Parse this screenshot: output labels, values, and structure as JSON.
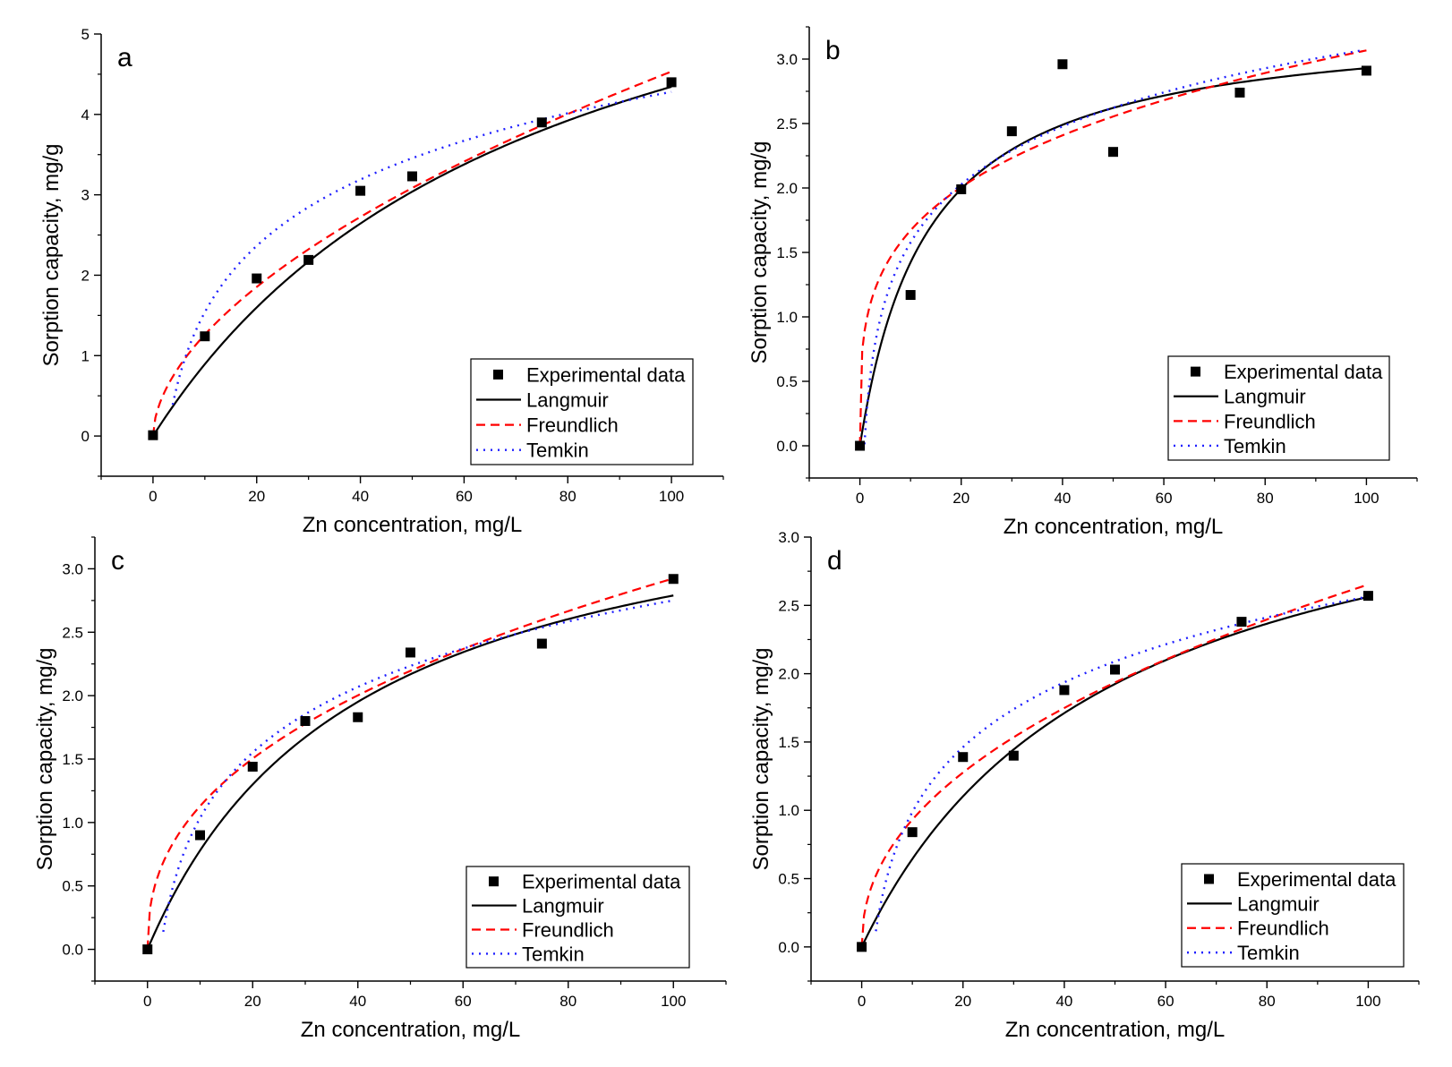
{
  "colors": {
    "langmuir": "#000000",
    "freundlich": "#ff0000",
    "temkin": "#1f1fff",
    "points": "#000000"
  },
  "chart_data": [
    {
      "type": "scatter",
      "panel_label": "a",
      "xlabel": "Zn concentration, mg/L",
      "ylabel": "Sorption capacity, mg/g",
      "xlim": [
        -10,
        110
      ],
      "ylim": [
        -0.5,
        5
      ],
      "xticks": [
        "0",
        "20",
        "40",
        "60",
        "80",
        "100"
      ],
      "yticks": [
        "0",
        "1",
        "2",
        "3",
        "4",
        "5"
      ],
      "legend": [
        "Experimental data",
        "Langmuir",
        "Freundlich",
        "Temkin"
      ],
      "legend_position": "bottom-right",
      "series": [
        {
          "name": "Experimental data",
          "x": [
            0,
            10,
            20,
            30,
            40,
            50,
            75,
            100
          ],
          "y": [
            0.01,
            1.24,
            1.96,
            2.19,
            3.05,
            3.23,
            3.9,
            4.4
          ]
        },
        {
          "name": "Langmuir",
          "model": "langmuir",
          "qmax": 7.61,
          "K": 0.0133,
          "xrange": [
            0,
            100
          ]
        },
        {
          "name": "Freundlich",
          "model": "freundlich",
          "Kf": 0.351,
          "n": 1.8,
          "xrange": [
            0,
            100
          ]
        },
        {
          "name": "Temkin",
          "model": "temkin",
          "A": -1.2,
          "B": 1.19,
          "xrange": [
            3.8,
            100
          ]
        }
      ]
    },
    {
      "type": "scatter",
      "panel_label": "b",
      "xlabel": "Zn concentration, mg/L",
      "ylabel": "Sorption capacity, mg/g",
      "xlim": [
        -10,
        110
      ],
      "ylim": [
        -0.25,
        3.25
      ],
      "xticks": [
        "0",
        "20",
        "40",
        "60",
        "80",
        "100"
      ],
      "yticks": [
        "0.0",
        "0.5",
        "1.0",
        "1.5",
        "2.0",
        "2.5",
        "3.0"
      ],
      "legend": [
        "Experimental data",
        "Langmuir",
        "Freundlich",
        "Temkin"
      ],
      "legend_position": "bottom-right",
      "series": [
        {
          "name": "Experimental data",
          "x": [
            0,
            10,
            20,
            30,
            40,
            50,
            75,
            100
          ],
          "y": [
            0.0,
            1.17,
            1.99,
            2.44,
            2.96,
            2.28,
            2.74,
            2.91
          ]
        },
        {
          "name": "Langmuir",
          "model": "langmuir",
          "qmax": 3.32,
          "K": 0.075,
          "xrange": [
            0,
            100
          ]
        },
        {
          "name": "Freundlich",
          "model": "freundlich",
          "Kf": 0.91,
          "n": 3.79,
          "xrange": [
            0,
            100
          ]
        },
        {
          "name": "Temkin",
          "model": "temkin",
          "A": 0.08,
          "B": 0.65,
          "xrange": [
            0.9,
            99
          ]
        }
      ]
    },
    {
      "type": "scatter",
      "panel_label": "c",
      "xlabel": "Zn concentration, mg/L",
      "ylabel": "Sorption capacity, mg/g",
      "xlim": [
        -10,
        110
      ],
      "ylim": [
        -0.25,
        3.25
      ],
      "xticks": [
        "0",
        "20",
        "40",
        "60",
        "80",
        "100"
      ],
      "yticks": [
        "0.0",
        "0.5",
        "1.0",
        "1.5",
        "2.0",
        "2.5",
        "3.0"
      ],
      "legend": [
        "Experimental data",
        "Langmuir",
        "Freundlich",
        "Temkin"
      ],
      "legend_position": "bottom-right",
      "series": [
        {
          "name": "Experimental data",
          "x": [
            0,
            10,
            20,
            30,
            40,
            50,
            75,
            100
          ],
          "y": [
            0.0,
            0.9,
            1.44,
            1.8,
            1.83,
            2.34,
            2.41,
            2.92
          ]
        },
        {
          "name": "Langmuir",
          "model": "langmuir",
          "qmax": 3.91,
          "K": 0.0249,
          "xrange": [
            0,
            100
          ]
        },
        {
          "name": "Freundlich",
          "model": "freundlich",
          "Kf": 0.436,
          "n": 2.42,
          "xrange": [
            0,
            100
          ]
        },
        {
          "name": "Temkin",
          "model": "temkin",
          "A": -0.68,
          "B": 0.745,
          "xrange": [
            3,
            100
          ]
        }
      ]
    },
    {
      "type": "scatter",
      "panel_label": "d",
      "xlabel": "Zn concentration, mg/L",
      "ylabel": "Sorption capacity, mg/g",
      "xlim": [
        -10,
        110
      ],
      "ylim": [
        -0.25,
        3.0
      ],
      "xticks": [
        "0",
        "20",
        "40",
        "60",
        "80",
        "100"
      ],
      "yticks": [
        "0.0",
        "0.5",
        "1.0",
        "1.5",
        "2.0",
        "2.5",
        "3.0"
      ],
      "legend": [
        "Experimental data",
        "Langmuir",
        "Freundlich",
        "Temkin"
      ],
      "legend_position": "bottom-right",
      "series": [
        {
          "name": "Experimental data",
          "x": [
            0,
            10,
            20,
            30,
            40,
            50,
            75,
            100
          ],
          "y": [
            0.0,
            0.84,
            1.39,
            1.4,
            1.88,
            2.03,
            2.38,
            2.57
          ]
        },
        {
          "name": "Langmuir",
          "model": "langmuir",
          "qmax": 3.83,
          "K": 0.0202,
          "xrange": [
            0,
            100
          ]
        },
        {
          "name": "Freundlich",
          "model": "freundlich",
          "Kf": 0.327,
          "n": 2.2,
          "xrange": [
            0,
            100
          ]
        },
        {
          "name": "Temkin",
          "model": "temkin",
          "A": -0.59,
          "B": 0.685,
          "xrange": [
            2.8,
            100
          ]
        }
      ]
    }
  ]
}
